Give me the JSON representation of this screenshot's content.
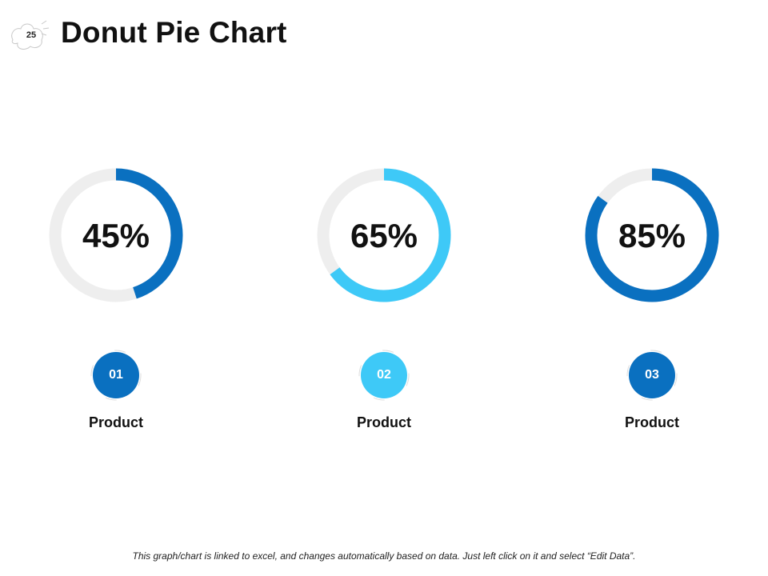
{
  "slide": {
    "number": "25",
    "title": "Donut Pie Chart"
  },
  "colors": {
    "track": "#eeeeee",
    "dark": "#0a70c0",
    "light": "#3ec9f7"
  },
  "chart_data": {
    "type": "donut",
    "items": [
      {
        "value": 45,
        "label_text": "45%",
        "index": "01",
        "name": "Product",
        "color": "#0a70c0"
      },
      {
        "value": 65,
        "label_text": "65%",
        "index": "02",
        "name": "Product",
        "color": "#3ec9f7"
      },
      {
        "value": 85,
        "label_text": "85%",
        "index": "03",
        "name": "Product",
        "color": "#0a70c0"
      }
    ]
  },
  "footer": {
    "note": "This graph/chart is linked to excel, and changes automatically  based on data.  Just left click on it and select “Edit Data”."
  }
}
